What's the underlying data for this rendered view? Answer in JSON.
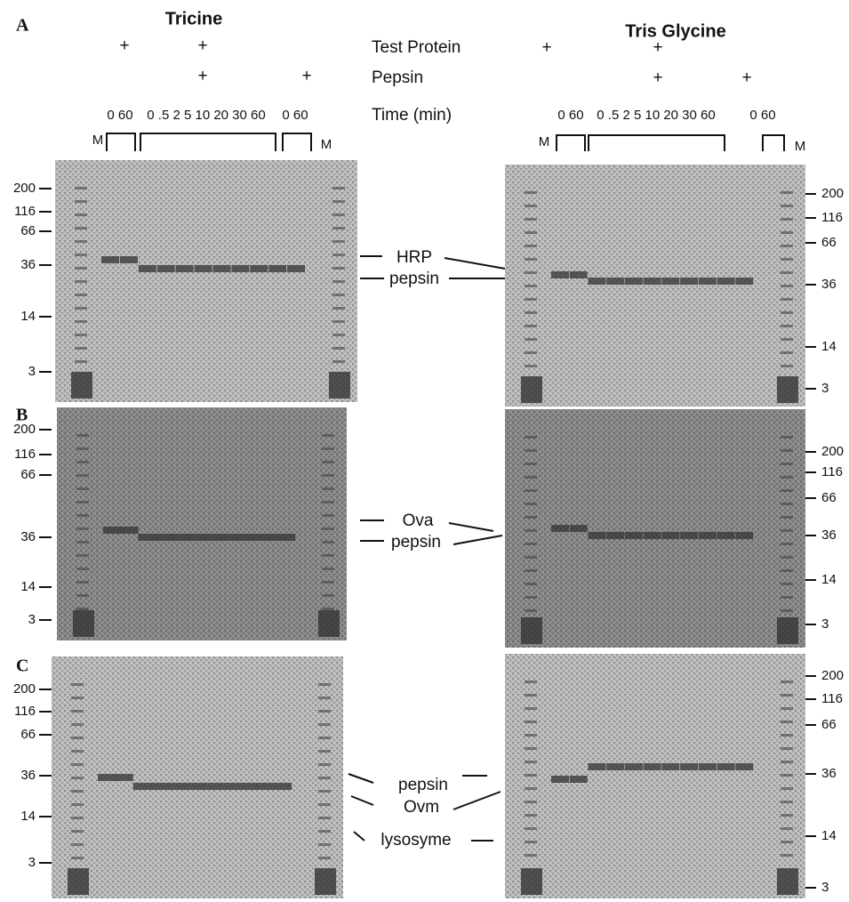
{
  "panel_letters": [
    "A",
    "B",
    "C"
  ],
  "header": {
    "left_title": "Tricine",
    "right_title": "Tris Glycine",
    "row_labels": [
      "Test Protein",
      "Pepsin",
      "Time (min)"
    ],
    "plus": "+",
    "lane_groups": [
      "0 60",
      "0 .5 2 5 10 20 30 60",
      "0 60"
    ],
    "marker_lane": "M"
  },
  "mw_markers": [
    "200",
    "116",
    "66",
    "36",
    "14",
    "3"
  ],
  "panels": [
    {
      "labels": [
        "HRP",
        "pepsin"
      ]
    },
    {
      "labels": [
        "Ova",
        "pepsin"
      ]
    },
    {
      "labels": [
        "pepsin",
        "Ovm",
        "lysosyme"
      ]
    }
  ]
}
